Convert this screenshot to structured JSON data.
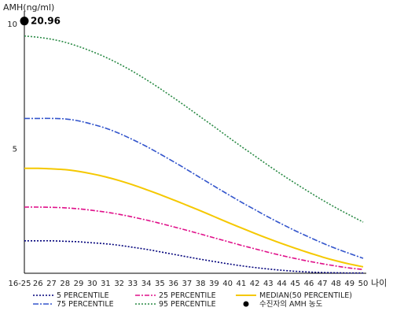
{
  "chart_data": {
    "type": "line",
    "ylabel": "AMH(ng/ml)",
    "xlabel": "나이",
    "x": [
      "16-25",
      "26",
      "27",
      "28",
      "29",
      "30",
      "31",
      "32",
      "33",
      "34",
      "35",
      "36",
      "37",
      "38",
      "39",
      "40",
      "41",
      "42",
      "43",
      "44",
      "45",
      "46",
      "47",
      "48",
      "49",
      "50"
    ],
    "ylim": [
      0,
      10.5
    ],
    "yticks": [
      5,
      10
    ],
    "series": [
      {
        "name": "5 PERCENTILE",
        "color": "#00007a",
        "dash": "2,2",
        "values": [
          1.3,
          1.3,
          1.3,
          1.28,
          1.26,
          1.22,
          1.18,
          1.12,
          1.04,
          0.96,
          0.86,
          0.76,
          0.66,
          0.56,
          0.47,
          0.38,
          0.3,
          0.23,
          0.17,
          0.12,
          0.08,
          0.05,
          0.03,
          0.02,
          0.01,
          0.01
        ]
      },
      {
        "name": "25 PERCENTILE",
        "color": "#e0108a",
        "dash": "6,2,2,2",
        "values": [
          2.65,
          2.65,
          2.64,
          2.62,
          2.58,
          2.52,
          2.45,
          2.36,
          2.25,
          2.13,
          2,
          1.86,
          1.72,
          1.57,
          1.42,
          1.27,
          1.12,
          0.98,
          0.84,
          0.71,
          0.59,
          0.48,
          0.38,
          0.29,
          0.21,
          0.15
        ]
      },
      {
        "name": "MEDIAN(50 PERCENTILE)",
        "color": "#f5c800",
        "dash": "",
        "values": [
          4.2,
          4.2,
          4.18,
          4.15,
          4.08,
          3.98,
          3.86,
          3.71,
          3.54,
          3.35,
          3.15,
          2.94,
          2.72,
          2.5,
          2.27,
          2.04,
          1.82,
          1.6,
          1.39,
          1.19,
          1.0,
          0.82,
          0.65,
          0.5,
          0.37,
          0.26
        ]
      },
      {
        "name": "75 PERCENTILE",
        "color": "#3355cc",
        "dash": "7,2,2,2",
        "values": [
          6.2,
          6.2,
          6.2,
          6.18,
          6.1,
          5.97,
          5.81,
          5.6,
          5.35,
          5.08,
          4.78,
          4.47,
          4.15,
          3.82,
          3.49,
          3.17,
          2.85,
          2.55,
          2.25,
          1.97,
          1.7,
          1.45,
          1.21,
          0.99,
          0.79,
          0.6
        ]
      },
      {
        "name": "95 PERCENTILE",
        "color": "#2a8a45",
        "dash": "2,2",
        "values": [
          9.5,
          9.45,
          9.37,
          9.25,
          9.08,
          8.88,
          8.65,
          8.38,
          8.08,
          7.75,
          7.4,
          7.03,
          6.65,
          6.26,
          5.87,
          5.47,
          5.08,
          4.7,
          4.32,
          3.95,
          3.6,
          3.26,
          2.93,
          2.62,
          2.33,
          2.05
        ]
      }
    ],
    "marker": {
      "name": "수진자의 AMH 농도",
      "x": "16-25",
      "y": 10.1,
      "label": "20.96",
      "color": "#000000"
    },
    "grid": false,
    "legend_position": "bottom"
  }
}
